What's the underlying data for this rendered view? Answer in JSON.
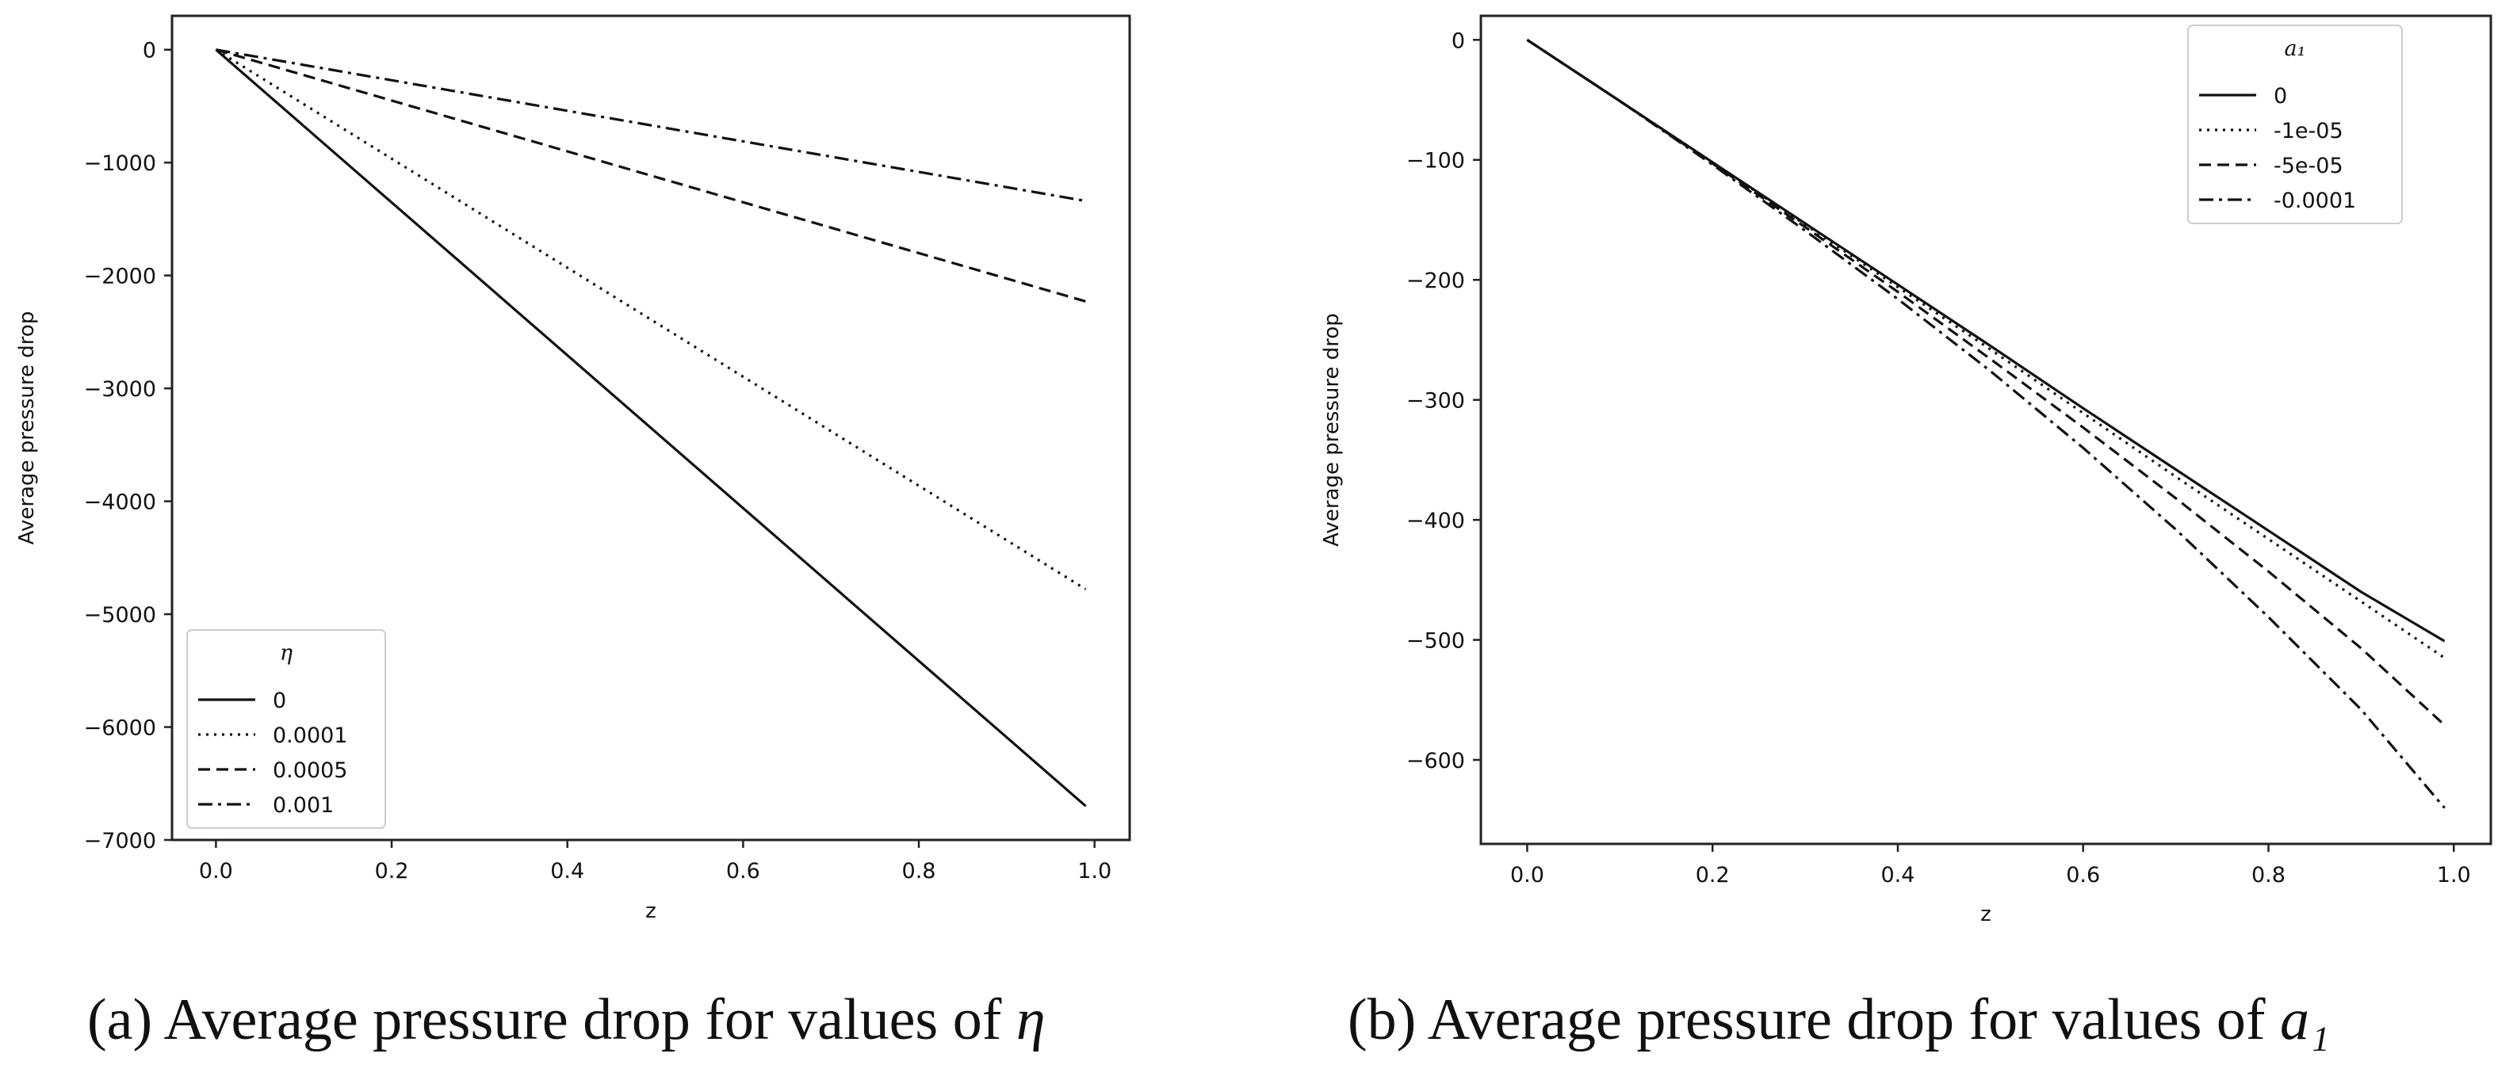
{
  "panels": [
    {
      "id": "a",
      "caption_text": "(a) Average pressure drop for values of",
      "caption_symbol": "η"
    },
    {
      "id": "b",
      "caption_text": "(b) Average pressure drop for values of",
      "caption_symbol": "a₁"
    }
  ],
  "chart_data": [
    {
      "type": "line",
      "title": "",
      "xlabel": "z",
      "ylabel": "Average pressure drop",
      "xlim": [
        -0.05,
        1.04
      ],
      "ylim": [
        -7000,
        300
      ],
      "xticks": [
        0.0,
        0.2,
        0.4,
        0.6,
        0.8,
        1.0
      ],
      "xtick_labels": [
        "0.0",
        "0.2",
        "0.4",
        "0.6",
        "0.8",
        "1.0"
      ],
      "yticks": [
        0,
        -1000,
        -2000,
        -3000,
        -4000,
        -5000,
        -6000,
        -7000
      ],
      "ytick_labels": [
        "0",
        "−1000",
        "−2000",
        "−3000",
        "−4000",
        "−5000",
        "−6000",
        "−7000"
      ],
      "legend": {
        "title": "η",
        "location": "lower-left"
      },
      "series": [
        {
          "name": "0",
          "style": "solid",
          "x": [
            0,
            0.99
          ],
          "y": [
            0,
            -6700
          ]
        },
        {
          "name": "0.0001",
          "style": "dotted",
          "x": [
            0,
            0.99
          ],
          "y": [
            0,
            -4780
          ]
        },
        {
          "name": "0.0005",
          "style": "dashed",
          "x": [
            0,
            0.99
          ],
          "y": [
            0,
            -2230
          ]
        },
        {
          "name": "0.001",
          "style": "dashdot",
          "x": [
            0,
            0.99
          ],
          "y": [
            0,
            -1340
          ]
        }
      ]
    },
    {
      "type": "line",
      "title": "",
      "xlabel": "z",
      "ylabel": "Average pressure drop",
      "xlim": [
        -0.05,
        1.04
      ],
      "ylim": [
        -670,
        20
      ],
      "xticks": [
        0.0,
        0.2,
        0.4,
        0.6,
        0.8,
        1.0
      ],
      "xtick_labels": [
        "0.0",
        "0.2",
        "0.4",
        "0.6",
        "0.8",
        "1.0"
      ],
      "yticks": [
        0,
        -100,
        -200,
        -300,
        -400,
        -500,
        -600
      ],
      "ytick_labels": [
        "0",
        "−100",
        "−200",
        "−300",
        "−400",
        "−500",
        "−600"
      ],
      "legend": {
        "title": "a₁",
        "location": "upper-right"
      },
      "series": [
        {
          "name": "0",
          "style": "solid",
          "x": [
            0,
            0.1,
            0.2,
            0.3,
            0.4,
            0.5,
            0.6,
            0.7,
            0.8,
            0.9,
            0.99
          ],
          "y": [
            0,
            -51,
            -102,
            -153,
            -204,
            -255,
            -307,
            -358,
            -409,
            -460,
            -501
          ]
        },
        {
          "name": "-1e-05",
          "style": "dotted",
          "x": [
            0,
            0.1,
            0.2,
            0.3,
            0.4,
            0.5,
            0.6,
            0.7,
            0.8,
            0.9,
            0.99
          ],
          "y": [
            0,
            -51,
            -102,
            -154,
            -206,
            -258,
            -311,
            -364,
            -416,
            -468,
            -515
          ]
        },
        {
          "name": "-5e-05",
          "style": "dashed",
          "x": [
            0,
            0.1,
            0.2,
            0.3,
            0.4,
            0.5,
            0.6,
            0.7,
            0.8,
            0.9,
            0.99
          ],
          "y": [
            0,
            -51,
            -103,
            -156,
            -210,
            -266,
            -323,
            -382,
            -443,
            -507,
            -571
          ]
        },
        {
          "name": "-0.0001",
          "style": "dashdot",
          "x": [
            0,
            0.1,
            0.2,
            0.3,
            0.4,
            0.5,
            0.6,
            0.7,
            0.8,
            0.9,
            0.99
          ],
          "y": [
            0,
            -51,
            -104,
            -159,
            -216,
            -276,
            -340,
            -408,
            -481,
            -558,
            -640
          ]
        }
      ]
    }
  ]
}
